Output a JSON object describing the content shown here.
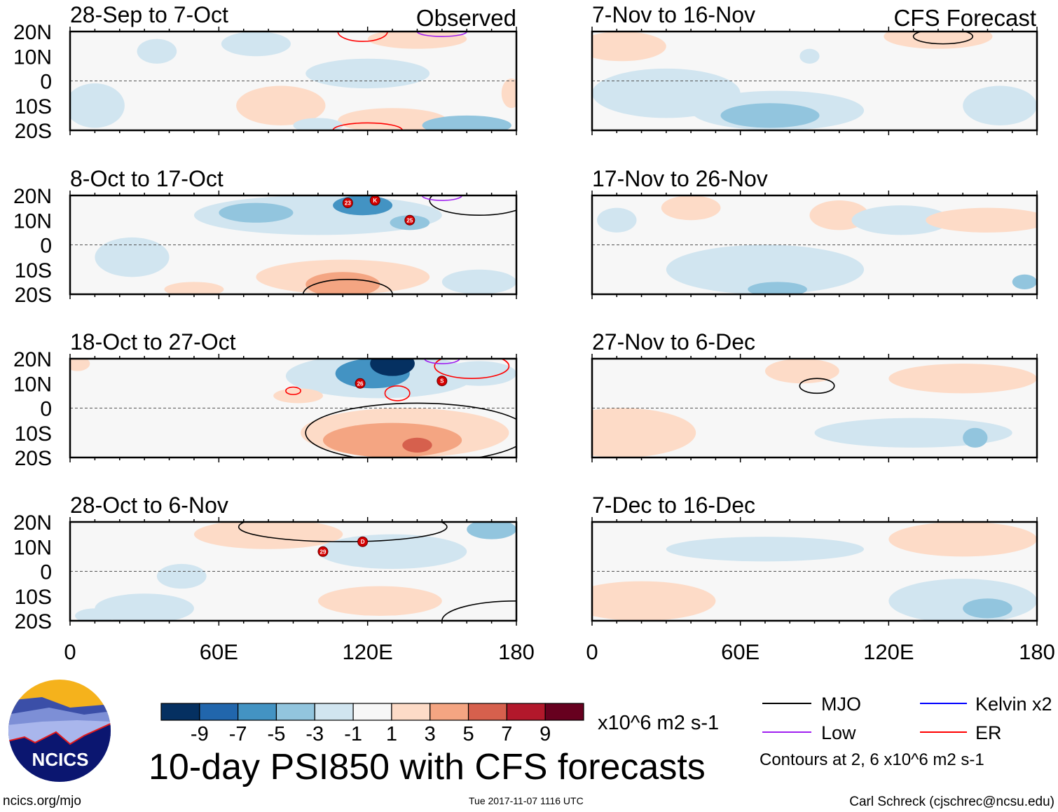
{
  "header": {
    "observed_label": "Observed",
    "forecast_label": "CFS Forecast"
  },
  "y_ticks": [
    "20N",
    "10N",
    "0",
    "10S",
    "20S"
  ],
  "y_tick_values": [
    20,
    10,
    0,
    -10,
    -20
  ],
  "x_ticks": [
    "0",
    "60E",
    "120E",
    "180"
  ],
  "x_tick_values": [
    0,
    60,
    120,
    180
  ],
  "chart_data": {
    "type": "heatmap",
    "lon_range": [
      0,
      180
    ],
    "lat_range": [
      -20,
      20
    ],
    "panels": [
      {
        "title": "28-Sep to 7-Oct",
        "column": "observed",
        "anomalies": [
          [
            75,
            15,
            14,
            5,
            -2
          ],
          [
            120,
            3,
            25,
            6,
            -2
          ],
          [
            85,
            -10,
            18,
            8,
            2
          ],
          [
            130,
            -16,
            22,
            5,
            2
          ],
          [
            160,
            -18,
            18,
            4,
            -4
          ],
          [
            140,
            17,
            20,
            4,
            2
          ],
          [
            10,
            -10,
            12,
            9,
            -2
          ],
          [
            100,
            -18,
            10,
            3,
            -2
          ],
          [
            35,
            12,
            8,
            5,
            -2
          ],
          [
            178,
            -5,
            4,
            6,
            2
          ]
        ],
        "contours": [
          [
            118,
            20,
            10,
            4,
            "ER"
          ],
          [
            120,
            -20,
            14,
            3,
            "ER"
          ],
          [
            150,
            20,
            10,
            2,
            "Low"
          ]
        ],
        "storms": []
      },
      {
        "title": "8-Oct to 17-Oct",
        "column": "observed",
        "anomalies": [
          [
            100,
            12,
            50,
            8,
            -2
          ],
          [
            75,
            13,
            15,
            4,
            -4
          ],
          [
            118,
            16,
            12,
            4,
            -6
          ],
          [
            137,
            9,
            8,
            3,
            -4
          ],
          [
            110,
            -13,
            35,
            7,
            2
          ],
          [
            110,
            -16,
            15,
            5,
            4
          ],
          [
            165,
            -15,
            15,
            5,
            -2
          ],
          [
            50,
            -18,
            12,
            3,
            2
          ],
          [
            25,
            -5,
            15,
            8,
            -2
          ]
        ],
        "contours": [
          [
            112,
            -20,
            18,
            6,
            "MJO"
          ],
          [
            165,
            18,
            20,
            6,
            "MJO"
          ],
          [
            150,
            20,
            8,
            2,
            "Low"
          ]
        ],
        "storms": [
          [
            112,
            17,
            "23"
          ],
          [
            123,
            18,
            "K"
          ],
          [
            137,
            10,
            "25"
          ]
        ]
      },
      {
        "title": "18-Oct to 27-Oct",
        "column": "observed",
        "anomalies": [
          [
            125,
            13,
            38,
            9,
            -2
          ],
          [
            122,
            14,
            15,
            6,
            -6
          ],
          [
            130,
            18,
            9,
            5,
            -10
          ],
          [
            135,
            -10,
            42,
            10,
            2
          ],
          [
            130,
            -13,
            28,
            7,
            4
          ],
          [
            140,
            -15,
            6,
            3,
            6
          ],
          [
            3,
            18,
            5,
            3,
            2
          ],
          [
            92,
            5,
            10,
            3,
            2
          ],
          [
            165,
            14,
            15,
            5,
            -2
          ]
        ],
        "contours": [
          [
            90,
            7,
            3,
            1.5,
            "ER"
          ],
          [
            132,
            6,
            5,
            3,
            "ER"
          ],
          [
            162,
            17,
            15,
            5,
            "ER"
          ],
          [
            140,
            -10,
            45,
            12,
            "MJO"
          ],
          [
            150,
            20,
            7,
            2,
            "Low"
          ]
        ],
        "storms": [
          [
            117,
            10,
            "26"
          ],
          [
            150,
            11,
            "S"
          ]
        ]
      },
      {
        "title": "28-Oct to 6-Nov",
        "column": "observed",
        "anomalies": [
          [
            80,
            15,
            30,
            6,
            2
          ],
          [
            135,
            5,
            15,
            3,
            -4
          ],
          [
            130,
            8,
            30,
            7,
            -2
          ],
          [
            30,
            -15,
            20,
            6,
            -2
          ],
          [
            170,
            17,
            10,
            4,
            -4
          ],
          [
            125,
            -12,
            25,
            6,
            2
          ],
          [
            45,
            -2,
            10,
            5,
            -2
          ],
          [
            10,
            -18,
            8,
            3,
            -2
          ]
        ],
        "contours": [
          [
            110,
            18,
            42,
            6,
            "MJO"
          ],
          [
            180,
            -20,
            30,
            8,
            "MJO"
          ]
        ],
        "storms": [
          [
            102,
            8,
            "29"
          ],
          [
            118,
            12,
            "D"
          ]
        ]
      },
      {
        "title": "7-Nov to 16-Nov",
        "column": "forecast",
        "anomalies": [
          [
            12,
            14,
            18,
            6,
            2
          ],
          [
            30,
            -5,
            30,
            10,
            -2
          ],
          [
            75,
            -12,
            35,
            8,
            -2
          ],
          [
            72,
            -14,
            20,
            5,
            -4
          ],
          [
            140,
            18,
            22,
            5,
            2
          ],
          [
            165,
            -10,
            15,
            8,
            -2
          ],
          [
            88,
            10,
            4,
            3,
            -2
          ]
        ],
        "contours": [
          [
            142,
            18,
            12,
            3,
            "MJO"
          ]
        ],
        "storms": []
      },
      {
        "title": "17-Nov to 26-Nov",
        "column": "forecast",
        "anomalies": [
          [
            40,
            15,
            12,
            5,
            2
          ],
          [
            100,
            12,
            12,
            6,
            2
          ],
          [
            125,
            10,
            20,
            6,
            -2
          ],
          [
            70,
            -10,
            40,
            10,
            -2
          ],
          [
            75,
            -18,
            12,
            3,
            -4
          ],
          [
            160,
            10,
            25,
            5,
            2
          ],
          [
            175,
            -15,
            5,
            3,
            -4
          ],
          [
            10,
            10,
            8,
            5,
            -2
          ]
        ],
        "contours": [],
        "storms": []
      },
      {
        "title": "27-Nov to 6-Dec",
        "column": "forecast",
        "anomalies": [
          [
            85,
            15,
            15,
            5,
            2
          ],
          [
            150,
            12,
            30,
            6,
            2
          ],
          [
            12,
            -10,
            30,
            10,
            2
          ],
          [
            130,
            -10,
            40,
            6,
            -2
          ],
          [
            155,
            -12,
            5,
            4,
            -4
          ]
        ],
        "contours": [
          [
            91,
            9,
            7,
            3,
            "MJO"
          ]
        ],
        "storms": []
      },
      {
        "title": "7-Dec to 16-Dec",
        "column": "forecast",
        "anomalies": [
          [
            70,
            9,
            40,
            5,
            -2
          ],
          [
            150,
            13,
            30,
            7,
            2
          ],
          [
            20,
            -12,
            30,
            8,
            2
          ],
          [
            150,
            -12,
            30,
            9,
            -2
          ],
          [
            160,
            -15,
            10,
            4,
            -4
          ]
        ],
        "contours": [],
        "storms": []
      }
    ],
    "colorbar": {
      "levels": [
        -9,
        -7,
        -5,
        -3,
        -1,
        1,
        3,
        5,
        7,
        9
      ],
      "labels": [
        "-9",
        "-7",
        "-5",
        "-3",
        "-1",
        "1",
        "3",
        "5",
        "7",
        "9"
      ],
      "colors": [
        "#053061",
        "#2166ac",
        "#4393c3",
        "#92c5de",
        "#d1e5f0",
        "#f7f7f7",
        "#fddbc7",
        "#f4a582",
        "#d6604d",
        "#b2182b",
        "#67001f"
      ],
      "units": "x10^6 m2 s-1"
    }
  },
  "legend": {
    "items": [
      {
        "key": "MJO",
        "label": "MJO",
        "color": "#000000"
      },
      {
        "key": "Kelvin",
        "label": "Kelvin x2",
        "color": "#0000ff"
      },
      {
        "key": "Low",
        "label": "Low",
        "color": "#a020f0"
      },
      {
        "key": "ER",
        "label": "ER",
        "color": "#ff0000"
      }
    ],
    "contour_note": "Contours at 2, 6 x10^6 m2 s-1"
  },
  "title": "10-day PSI850 with CFS forecasts",
  "timestamp": "Tue 2017-11-07 1116 UTC",
  "credit": "Carl Schreck (cjschrec@ncsu.edu)",
  "logo": {
    "text": "NCICS",
    "url_text": "ncics.org/mjo"
  }
}
